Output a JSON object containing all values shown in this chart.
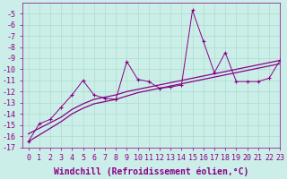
{
  "xlabel": "Windchill (Refroidissement éolien,°C)",
  "background_color": "#cceee8",
  "line_color": "#880088",
  "grid_color": "#aaddcc",
  "x_data": [
    0,
    1,
    2,
    3,
    4,
    5,
    6,
    7,
    8,
    9,
    10,
    11,
    12,
    13,
    14,
    15,
    16,
    17,
    18,
    19,
    20,
    21,
    22,
    23
  ],
  "y_main": [
    -16.5,
    -14.9,
    -14.5,
    -13.4,
    -12.3,
    -11.0,
    -12.3,
    -12.6,
    -12.7,
    -9.3,
    -10.9,
    -11.1,
    -11.7,
    -11.6,
    -11.4,
    -4.7,
    -7.5,
    -10.3,
    -8.5,
    -11.1,
    -11.1,
    -11.1,
    -10.8,
    -9.2
  ],
  "y_reg1": [
    -15.8,
    -15.3,
    -14.8,
    -14.3,
    -13.6,
    -13.1,
    -12.7,
    -12.5,
    -12.3,
    -12.0,
    -11.8,
    -11.6,
    -11.4,
    -11.2,
    -11.0,
    -10.8,
    -10.6,
    -10.4,
    -10.2,
    -10.0,
    -9.8,
    -9.6,
    -9.4,
    -9.2
  ],
  "y_reg2": [
    -16.5,
    -15.9,
    -15.3,
    -14.7,
    -14.0,
    -13.5,
    -13.1,
    -12.9,
    -12.7,
    -12.4,
    -12.1,
    -11.9,
    -11.7,
    -11.5,
    -11.3,
    -11.1,
    -10.9,
    -10.7,
    -10.5,
    -10.3,
    -10.1,
    -9.9,
    -9.7,
    -9.5
  ],
  "ylim": [
    -17,
    -4
  ],
  "xlim": [
    -0.5,
    23
  ],
  "yticks": [
    -17,
    -16,
    -15,
    -14,
    -13,
    -12,
    -11,
    -10,
    -9,
    -8,
    -7,
    -6,
    -5
  ],
  "xtick_labels": [
    "0",
    "1",
    "2",
    "3",
    "4",
    "5",
    "6",
    "7",
    "8",
    "9",
    "10",
    "11",
    "12",
    "13",
    "14",
    "15",
    "16",
    "17",
    "18",
    "19",
    "20",
    "21",
    "22",
    "23"
  ],
  "fontsize_tick": 6,
  "fontsize_xlabel": 7,
  "marker": "+"
}
